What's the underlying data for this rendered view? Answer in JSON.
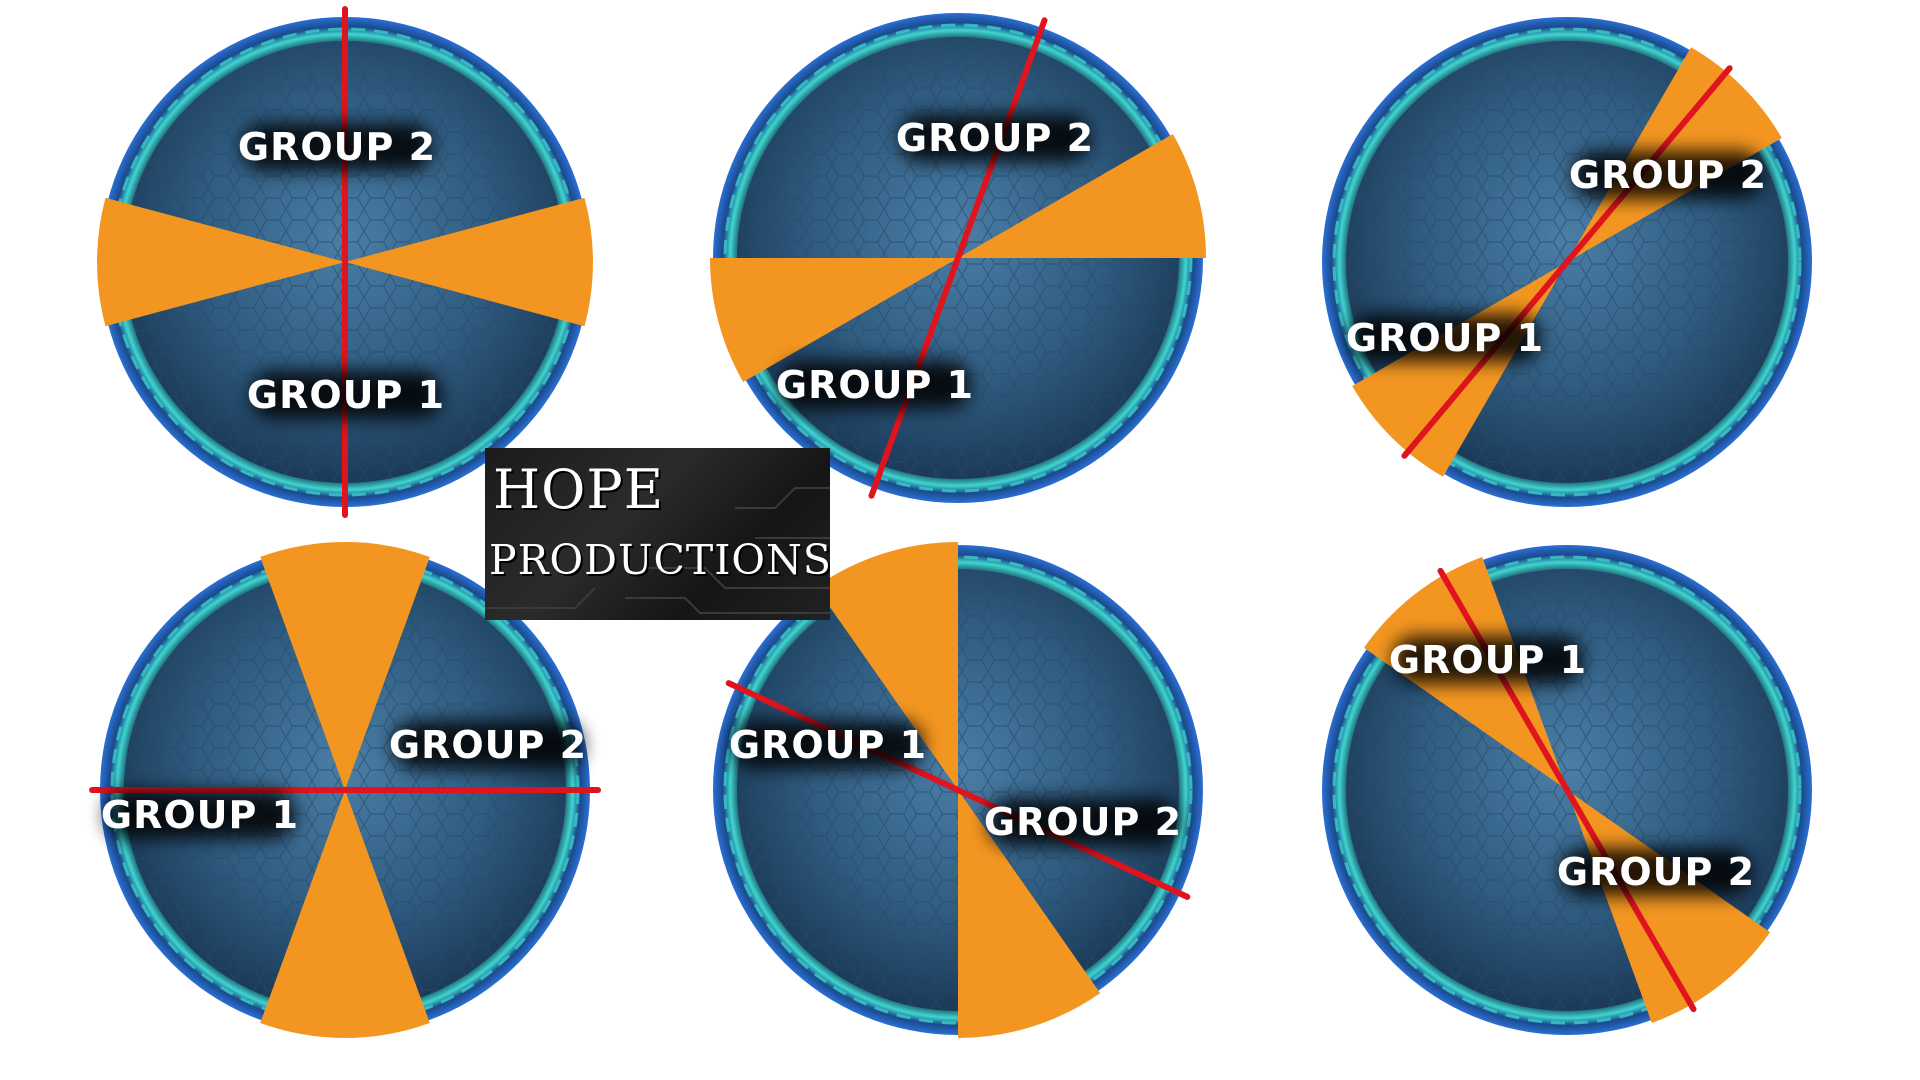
{
  "colors": {
    "wedge": "#f39621",
    "divider": "#e0141e",
    "disc_dark": "#17324f",
    "disc_mid": "#3a6b92",
    "ring_glow": "#3fd6d0",
    "label_text": "#ffffff"
  },
  "logo": {
    "line1": "HOPE",
    "line2": "PRODUCTIONS"
  },
  "diagrams": [
    {
      "name": "diagram-1",
      "wedges": [
        [
          75,
          105
        ],
        [
          255,
          285
        ]
      ],
      "divider_angle": 0,
      "labels": {
        "group2": "GROUP 2",
        "group1": "GROUP 1"
      }
    },
    {
      "name": "diagram-2",
      "wedges": [
        [
          60,
          90
        ],
        [
          240,
          270
        ]
      ],
      "divider_angle": 20,
      "labels": {
        "group2": "GROUP 2",
        "group1": "GROUP 1"
      }
    },
    {
      "name": "diagram-3",
      "wedges": [
        [
          30,
          60
        ],
        [
          210,
          240
        ]
      ],
      "divider_angle": 40,
      "labels": {
        "group2": "GROUP 2",
        "group1": "GROUP 1"
      }
    },
    {
      "name": "diagram-4",
      "wedges": [
        [
          160,
          200
        ],
        [
          340,
          20
        ]
      ],
      "divider_angle": 90,
      "labels": {
        "group2": "GROUP 2",
        "group1": "GROUP 1"
      }
    },
    {
      "name": "diagram-5",
      "wedges": [
        [
          145,
          180
        ],
        [
          325,
          360
        ]
      ],
      "divider_angle": 115,
      "labels": {
        "group1": "GROUP 1",
        "group2": "GROUP 2"
      }
    },
    {
      "name": "diagram-6",
      "wedges": [
        [
          125,
          160
        ],
        [
          305,
          340
        ]
      ],
      "divider_angle": 150,
      "labels": {
        "group1": "GROUP 1",
        "group2": "GROUP 2"
      }
    }
  ]
}
